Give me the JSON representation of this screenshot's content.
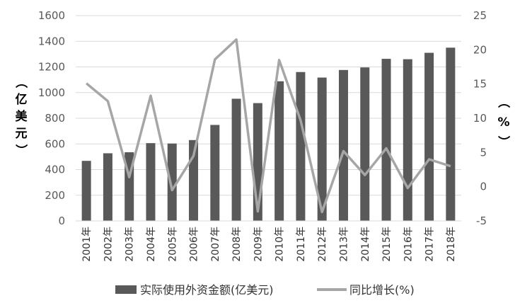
{
  "chart_data": {
    "type": "bar+line",
    "categories": [
      "2001年",
      "2002年",
      "2003年",
      "2004年",
      "2005年",
      "2006年",
      "2007年",
      "2008年",
      "2009年",
      "2010年",
      "2011年",
      "2012年",
      "2013年",
      "2014年",
      "2015年",
      "2016年",
      "2017年",
      "2018年"
    ],
    "series": [
      {
        "name": "实际使用外资金额(亿美元)",
        "type": "bar",
        "axis": "left",
        "color": "#595959",
        "values": [
          468,
          527,
          535,
          606,
          603,
          630,
          748,
          952,
          918,
          1088,
          1160,
          1117,
          1176,
          1196,
          1263,
          1260,
          1310,
          1350
        ]
      },
      {
        "name": "同比增长(%)",
        "type": "line",
        "axis": "right",
        "color": "#a6a6a6",
        "values": [
          15.1,
          12.5,
          1.4,
          13.3,
          -0.5,
          4.5,
          18.6,
          21.5,
          -3.6,
          18.5,
          9.7,
          -3.7,
          5.2,
          1.7,
          5.6,
          -0.2,
          4.0,
          3.0
        ]
      }
    ],
    "y_left": {
      "label_chars": [
        "（",
        "亿",
        "美",
        "元",
        "）"
      ],
      "range": [
        0,
        1600
      ],
      "ticks": [
        "0",
        "200",
        "400",
        "600",
        "800",
        "1000",
        "1200",
        "1400",
        "1600"
      ]
    },
    "y_right": {
      "label_chars": [
        "（",
        "%",
        "）"
      ],
      "range": [
        -5,
        25
      ],
      "ticks": [
        "-5",
        "0",
        "5",
        "10",
        "15",
        "20",
        "25"
      ]
    },
    "grid": true,
    "legend": {
      "position": "bottom",
      "items": [
        "实际使用外资金额(亿美元)",
        "同比增长(%)"
      ]
    }
  }
}
